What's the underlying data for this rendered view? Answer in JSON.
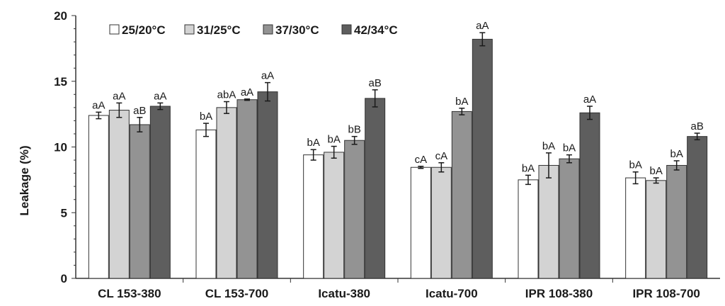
{
  "chart_data": {
    "type": "bar",
    "ylabel": "Leakage (%)",
    "ylim": [
      0,
      20
    ],
    "yticks": [
      "0",
      "5",
      "10",
      "15",
      "20"
    ],
    "categories": [
      "CL 153-380",
      "CL 153-700",
      "Icatu-380",
      "Icatu-700",
      "IPR 108-380",
      "IPR 108-700"
    ],
    "legend_position": "top-left",
    "grid": false,
    "series": [
      {
        "name": "25/20°C",
        "color": "#ffffff",
        "values": [
          12.4,
          11.3,
          9.4,
          8.45,
          7.5,
          7.65
        ],
        "errors": [
          0.25,
          0.5,
          0.4,
          0.08,
          0.35,
          0.45
        ],
        "labels": [
          "aA",
          "bA",
          "bA",
          "cA",
          "bA",
          "bA"
        ]
      },
      {
        "name": "31/25°C",
        "color": "#d3d3d3",
        "values": [
          12.8,
          13.0,
          9.6,
          8.45,
          8.6,
          7.45
        ],
        "errors": [
          0.55,
          0.45,
          0.45,
          0.35,
          0.95,
          0.2
        ],
        "labels": [
          "aA",
          "abA",
          "bA",
          "cA",
          "bA",
          "bA"
        ]
      },
      {
        "name": "37/30°C",
        "color": "#939393",
        "values": [
          11.7,
          13.6,
          10.5,
          12.7,
          9.1,
          8.6
        ],
        "errors": [
          0.55,
          0.05,
          0.3,
          0.25,
          0.3,
          0.35
        ],
        "labels": [
          "aB",
          "aA",
          "bB",
          "bA",
          "bA",
          "bA"
        ]
      },
      {
        "name": "42/34°C",
        "color": "#5e5e5e",
        "values": [
          13.1,
          14.2,
          13.7,
          18.2,
          12.6,
          10.8
        ],
        "errors": [
          0.25,
          0.7,
          0.65,
          0.5,
          0.5,
          0.25
        ],
        "labels": [
          "aA",
          "aA",
          "aB",
          "aA",
          "aA",
          "aB"
        ]
      }
    ]
  }
}
